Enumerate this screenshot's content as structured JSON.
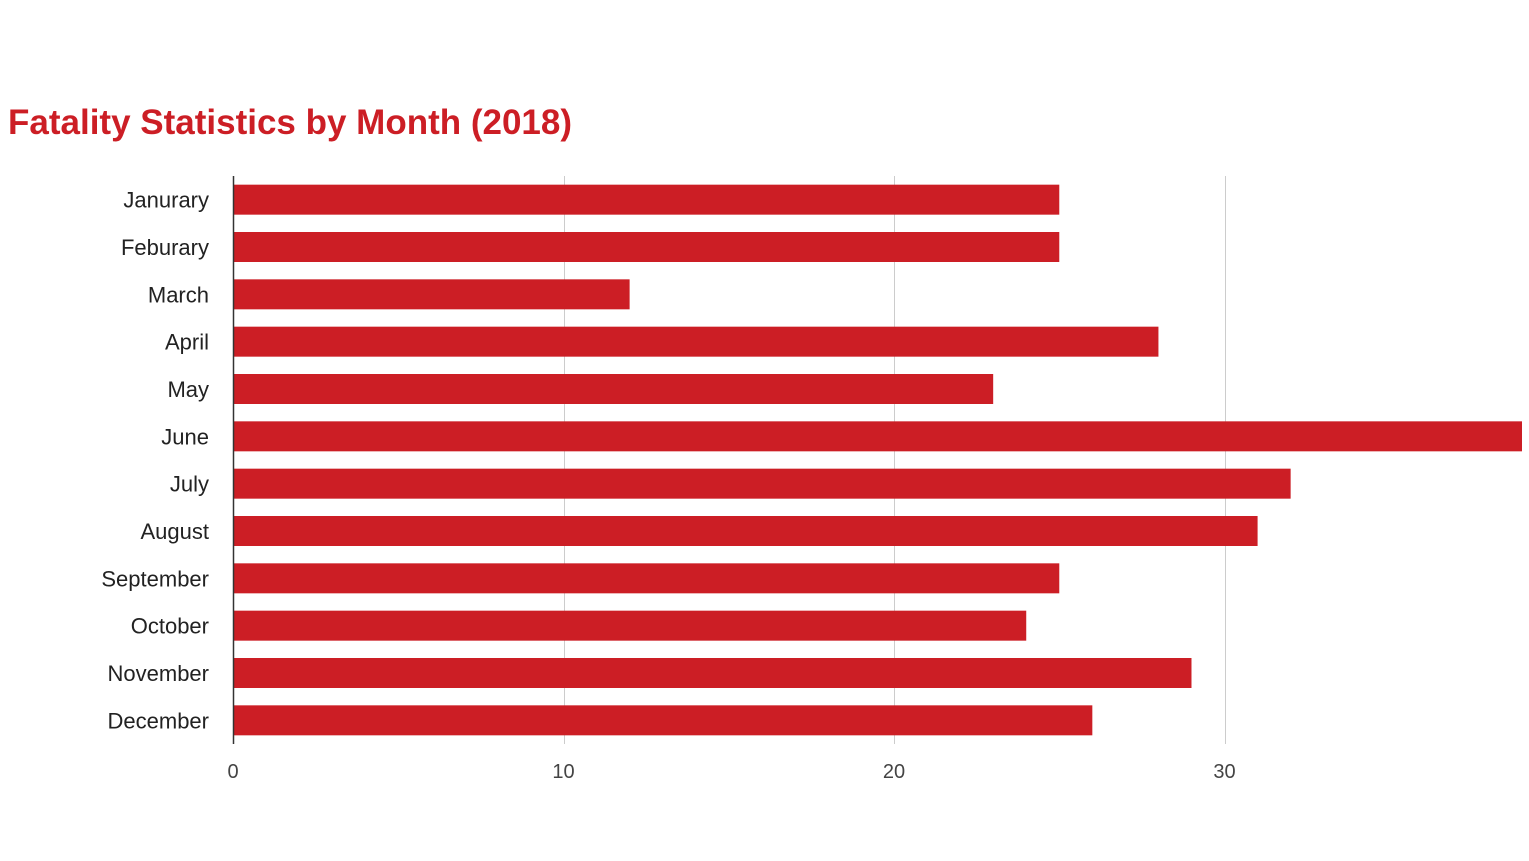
{
  "chart_data": {
    "type": "bar",
    "orientation": "horizontal",
    "title": "Fatality Statistics by Month (2018)",
    "xlabel": "",
    "ylabel": "",
    "categories": [
      "Janurary",
      "Feburary",
      "March",
      "April",
      "May",
      "June",
      "July",
      "August",
      "September",
      "October",
      "November",
      "December"
    ],
    "values": [
      25,
      25,
      12,
      28,
      23,
      39,
      32,
      31,
      25,
      24,
      29,
      26
    ],
    "xlim": [
      0,
      39
    ],
    "xticks": [
      0,
      10,
      20,
      30
    ],
    "grid": "vertical",
    "legend": "none"
  },
  "colors": {
    "bar": "#cc1e25",
    "title": "#cc1e25",
    "grid": "#cccccc",
    "axis": "#333333"
  }
}
